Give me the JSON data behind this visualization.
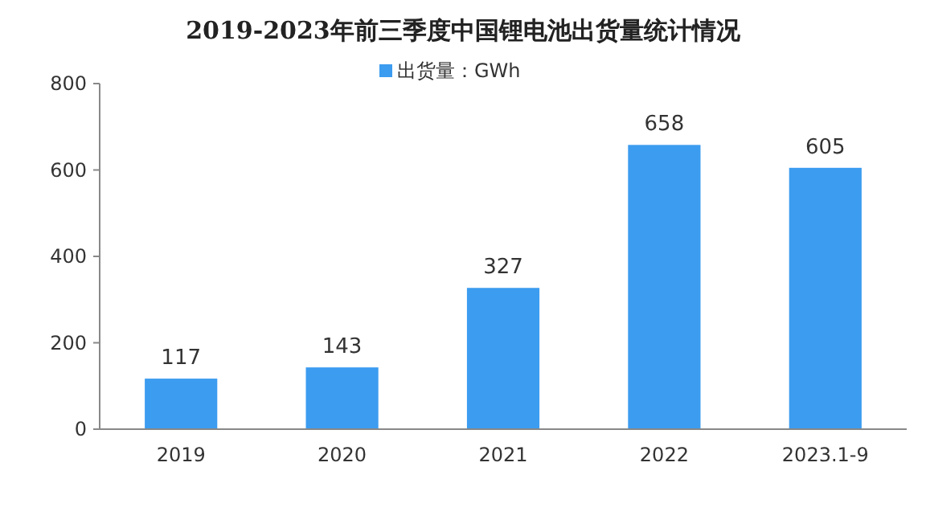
{
  "chart_data": {
    "type": "bar",
    "title": "2019-2023年前三季度中国锂电池出货量统计情况",
    "categories": [
      "2019",
      "2020",
      "2021",
      "2022",
      "2023.1-9"
    ],
    "series": [
      {
        "name": "出货量：GWh",
        "color": "#3c9cf0",
        "values": [
          117,
          143,
          327,
          658,
          605
        ]
      }
    ],
    "ylim": [
      0,
      800
    ],
    "yticks": [
      0,
      200,
      400,
      600,
      800
    ],
    "grid": false,
    "legend": "top",
    "data_labels": true
  }
}
